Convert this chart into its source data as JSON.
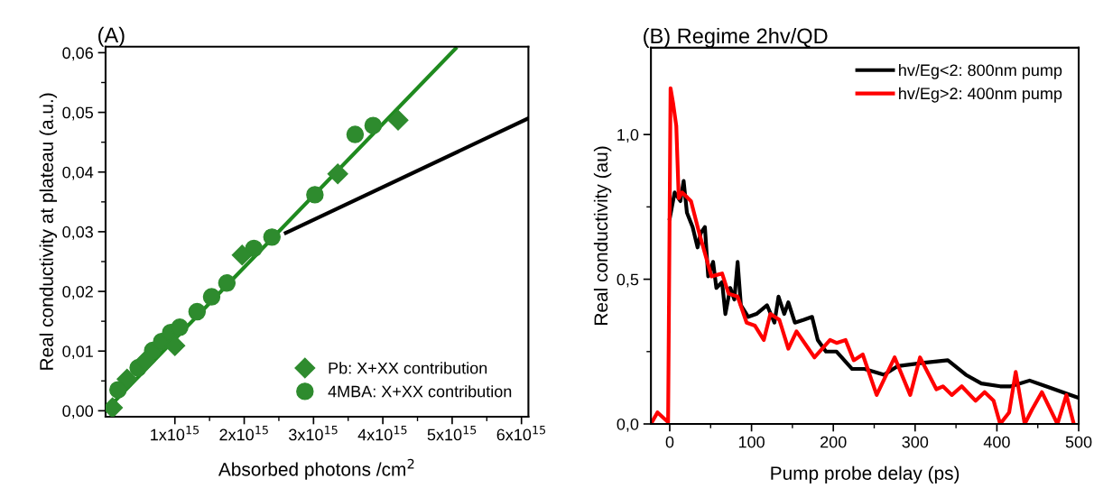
{
  "chart_data": [
    {
      "type": "scatter",
      "title": "(A)",
      "xlabel": "Absorbed photons /cm$^{2}$",
      "ylabel": "Real conductivity at plateau (a.u.)",
      "xlim": [
        0,
        6100000000000000.0
      ],
      "ylim": [
        -0.001,
        0.061
      ],
      "xticks": [
        {
          "value": 1000000000000000.0,
          "label": "1x10$^{15}$"
        },
        {
          "value": 2000000000000000.0,
          "label": "2x10$^{15}$"
        },
        {
          "value": 3000000000000000.0,
          "label": "3x10$^{15}$"
        },
        {
          "value": 4000000000000000.0,
          "label": "4x10$^{15}$"
        },
        {
          "value": 5000000000000000.0,
          "label": "5x10$^{15}$"
        },
        {
          "value": 6000000000000000.0,
          "label": "6x10$^{15}$"
        }
      ],
      "yticks": [
        {
          "value": 0,
          "label": "0,00"
        },
        {
          "value": 0.01,
          "label": "0,01"
        },
        {
          "value": 0.02,
          "label": "0,02"
        },
        {
          "value": 0.03,
          "label": "0,03"
        },
        {
          "value": 0.04,
          "label": "0,04"
        },
        {
          "value": 0.05,
          "label": "0,05"
        },
        {
          "value": 0.06,
          "label": "0,06"
        }
      ],
      "legend": "lower right",
      "grid": false,
      "series": [
        {
          "type": "line",
          "color": "#1f8a1f",
          "marker": "none",
          "x": [
            0,
            5050000000000000.0
          ],
          "values": [
            0,
            0.0607
          ]
        },
        {
          "type": "line",
          "color": "#000000",
          "marker": "none",
          "x": [
            2600000000000000.0,
            6100000000000000.0
          ],
          "values": [
            0.0298,
            0.049
          ]
        },
        {
          "type": "scatter",
          "name": "Pb: X+XX contribution",
          "color": "#2e8b2e",
          "marker": "diamond",
          "x": [
            100000000000000.0,
            310000000000000.0,
            570000000000000.0,
            1000000000000000.0,
            1970000000000000.0,
            3350000000000000.0,
            4220000000000000.0
          ],
          "values": [
            0.0005,
            0.0053,
            0.0083,
            0.0109,
            0.0261,
            0.0397,
            0.0487
          ]
        },
        {
          "type": "scatter",
          "name": "4MBA: X+XX contribution",
          "color": "#2e8b2e",
          "marker": "circle",
          "x": [
            180000000000000.0,
            470000000000000.0,
            680000000000000.0,
            810000000000000.0,
            940000000000000.0,
            1070000000000000.0,
            1320000000000000.0,
            1530000000000000.0,
            1750000000000000.0,
            2140000000000000.0,
            2400000000000000.0,
            3020000000000000.0,
            3600000000000000.0,
            3860000000000000.0
          ],
          "values": [
            0.0035,
            0.0072,
            0.0101,
            0.0116,
            0.0131,
            0.014,
            0.0166,
            0.0191,
            0.0214,
            0.0272,
            0.0291,
            0.0362,
            0.0463,
            0.0478
          ]
        }
      ]
    },
    {
      "type": "line",
      "title": "(B) Regime 2hv/QD",
      "xlabel": "Pump probe delay (ps)",
      "ylabel": "Real conductivity (au)",
      "xlim": [
        -23,
        500
      ],
      "ylim": [
        0,
        1.3
      ],
      "xticks": [
        0,
        100,
        200,
        300,
        400,
        500
      ],
      "yticks": [
        {
          "value": 0,
          "label": "0,0"
        },
        {
          "value": 0.5,
          "label": "0,5"
        },
        {
          "value": 1.0,
          "label": "1,0"
        }
      ],
      "legend": "upper right",
      "grid": false,
      "series": [
        {
          "name": "hv/Eg<2: 800nm pump",
          "color": "#000000",
          "x": [
            0,
            6,
            13,
            17,
            21,
            28,
            34,
            38,
            43,
            47,
            53,
            57,
            64,
            68,
            74,
            79,
            83,
            87,
            96,
            106,
            119,
            128,
            133,
            140,
            145,
            153,
            164,
            174,
            181,
            191,
            204,
            223,
            238,
            262,
            279,
            306,
            340,
            362,
            381,
            404,
            417,
            440,
            460,
            500
          ],
          "values": [
            0.71,
            0.8,
            0.77,
            0.84,
            0.73,
            0.68,
            0.61,
            0.66,
            0.68,
            0.51,
            0.56,
            0.47,
            0.49,
            0.38,
            0.47,
            0.43,
            0.56,
            0.41,
            0.37,
            0.38,
            0.41,
            0.35,
            0.44,
            0.38,
            0.42,
            0.35,
            0.36,
            0.37,
            0.29,
            0.25,
            0.25,
            0.19,
            0.19,
            0.17,
            0.2,
            0.21,
            0.22,
            0.17,
            0.14,
            0.13,
            0.13,
            0.15,
            0.13,
            0.09
          ]
        },
        {
          "name": "hv/Eg>2: 400nm pump",
          "color": "#ff0000",
          "x": [
            -23,
            -15,
            -2,
            1,
            4,
            8,
            11,
            15,
            26,
            36,
            51,
            64,
            72,
            83,
            94,
            104,
            115,
            123,
            134,
            145,
            155,
            177,
            196,
            204,
            215,
            225,
            236,
            253,
            275,
            294,
            306,
            326,
            334,
            345,
            357,
            374,
            385,
            396,
            404,
            415,
            423,
            434,
            443,
            455,
            474,
            485,
            494
          ],
          "values": [
            0,
            0.04,
            0.006,
            1.16,
            1.11,
            1.03,
            0.78,
            0.8,
            0.77,
            0.66,
            0.51,
            0.52,
            0.45,
            0.44,
            0.35,
            0.34,
            0.29,
            0.38,
            0.36,
            0.26,
            0.32,
            0.23,
            0.29,
            0.28,
            0.29,
            0.22,
            0.24,
            0.1,
            0.23,
            0.1,
            0.23,
            0.12,
            0.13,
            0.1,
            0.13,
            0.08,
            0.11,
            0.08,
            0,
            0.04,
            0.18,
            0,
            0.05,
            0.11,
            0,
            0.1,
            0
          ]
        }
      ]
    }
  ]
}
